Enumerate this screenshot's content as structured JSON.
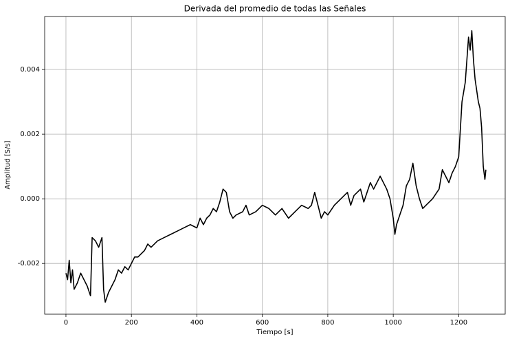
{
  "chart_data": {
    "type": "line",
    "title": "Derivada del promedio de todas las Señales",
    "xlabel": "Tiempo [s]",
    "ylabel": "Amplitud [S/s]",
    "xlim": [
      -65,
      1342
    ],
    "ylim": [
      -0.00357,
      0.00564
    ],
    "xticks": [
      0,
      200,
      400,
      600,
      800,
      1000,
      1200
    ],
    "yticks": [
      -0.002,
      {
        "value": 0,
        "label": "0.000"
      },
      0.002,
      0.004
    ],
    "grid": true,
    "series": [
      {
        "color": "#000000",
        "x": [
          0,
          5,
          10,
          15,
          20,
          25,
          35,
          45,
          55,
          65,
          75,
          80,
          90,
          100,
          110,
          115,
          120,
          130,
          140,
          150,
          160,
          170,
          180,
          190,
          200,
          210,
          220,
          240,
          250,
          260,
          280,
          300,
          320,
          340,
          360,
          380,
          400,
          410,
          420,
          430,
          440,
          450,
          460,
          470,
          480,
          490,
          500,
          510,
          520,
          540,
          550,
          560,
          580,
          600,
          620,
          640,
          660,
          680,
          700,
          720,
          740,
          750,
          760,
          770,
          780,
          790,
          800,
          820,
          840,
          860,
          870,
          880,
          900,
          910,
          920,
          930,
          940,
          960,
          980,
          990,
          1000,
          1005,
          1010,
          1020,
          1030,
          1040,
          1050,
          1060,
          1070,
          1080,
          1090,
          1100,
          1120,
          1140,
          1150,
          1160,
          1170,
          1180,
          1190,
          1200,
          1210,
          1220,
          1230,
          1235,
          1240,
          1245,
          1250,
          1260,
          1265,
          1270,
          1275,
          1280,
          1283
        ],
        "values": [
          -0.0023,
          -0.0025,
          -0.0019,
          -0.0026,
          -0.0022,
          -0.0028,
          -0.0026,
          -0.0023,
          -0.0025,
          -0.0027,
          -0.003,
          -0.0012,
          -0.0013,
          -0.0015,
          -0.0012,
          -0.0028,
          -0.0032,
          -0.0029,
          -0.0027,
          -0.0025,
          -0.0022,
          -0.0023,
          -0.0021,
          -0.0022,
          -0.002,
          -0.0018,
          -0.0018,
          -0.0016,
          -0.0014,
          -0.0015,
          -0.0013,
          -0.0012,
          -0.0011,
          -0.001,
          -0.0009,
          -0.0008,
          -0.0009,
          -0.0006,
          -0.0008,
          -0.0006,
          -0.0005,
          -0.0003,
          -0.0004,
          -0.0001,
          0.0003,
          0.0002,
          -0.0004,
          -0.0006,
          -0.0005,
          -0.0004,
          -0.0002,
          -0.0005,
          -0.0004,
          -0.0002,
          -0.0003,
          -0.0005,
          -0.0003,
          -0.0006,
          -0.0004,
          -0.0002,
          -0.0003,
          -0.0002,
          0.0002,
          -0.0002,
          -0.0006,
          -0.0004,
          -0.0005,
          -0.0002,
          0,
          0.0002,
          -0.0002,
          0.0001,
          0.0003,
          -0.0001,
          0.0002,
          0.0005,
          0.0003,
          0.0007,
          0.0003,
          0,
          -0.0006,
          -0.0011,
          -0.0008,
          -0.0005,
          -0.0002,
          0.0004,
          0.0006,
          0.0011,
          0.0004,
          0,
          -0.0003,
          -0.0002,
          0,
          0.0003,
          0.0009,
          0.0007,
          0.0005,
          0.0008,
          0.001,
          0.0013,
          0.003,
          0.0036,
          0.005,
          0.0046,
          0.0052,
          0.0043,
          0.0037,
          0.003,
          0.0028,
          0.0022,
          0.001,
          0.0006,
          0.0009
        ]
      }
    ]
  }
}
